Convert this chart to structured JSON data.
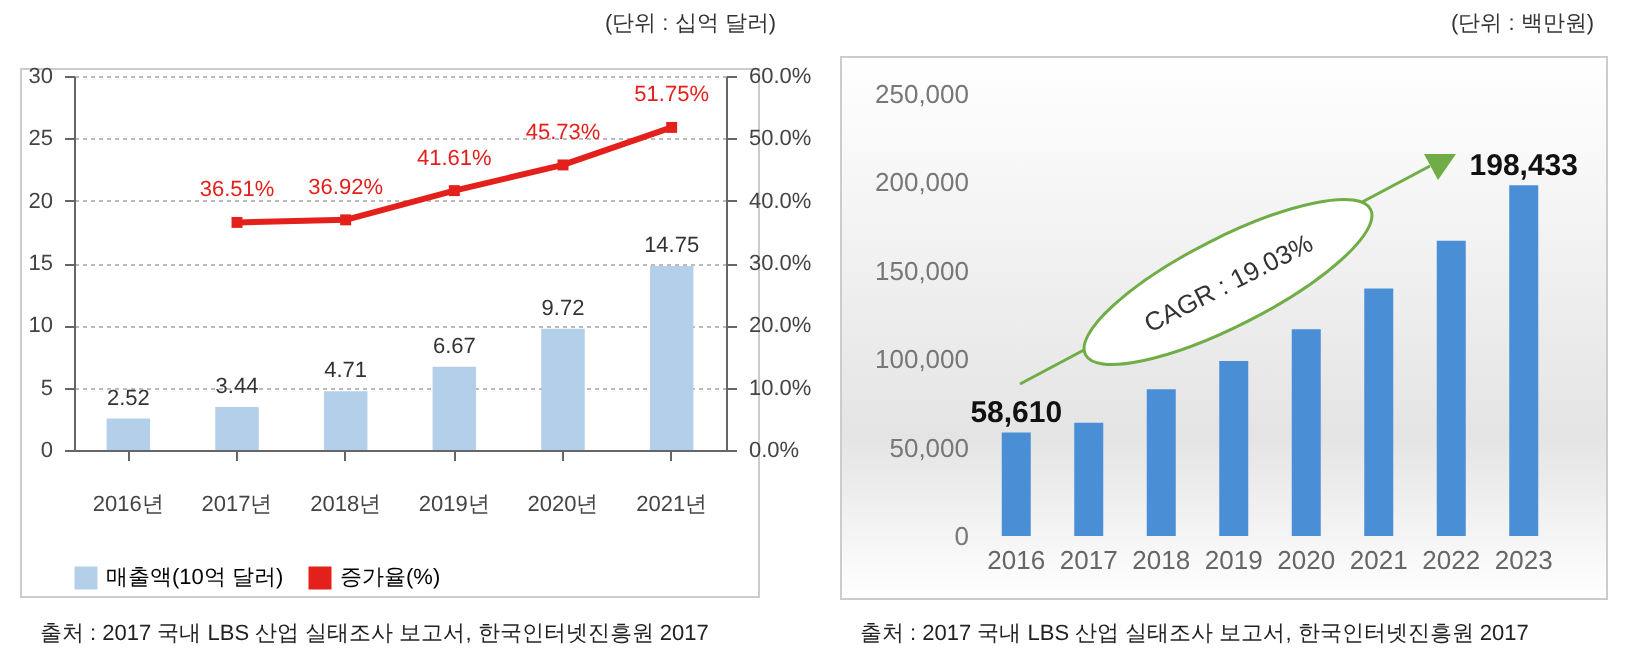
{
  "chart_data": [
    {
      "type": "bar",
      "categories": [
        "2016년",
        "2017년",
        "2018년",
        "2019년",
        "2020년",
        "2021년"
      ],
      "series": [
        {
          "name": "매출액(10억 달러)",
          "color": "#b4cfea",
          "values": [
            2.52,
            3.44,
            4.71,
            6.67,
            9.72,
            14.75
          ],
          "value_labels": [
            "2.52",
            "3.44",
            "4.71",
            "6.67",
            "9.72",
            "14.75"
          ]
        },
        {
          "name": "증가율(%)",
          "type": "line",
          "axis": "y2",
          "color": "#e3201b",
          "values": [
            null,
            36.51,
            36.92,
            41.61,
            45.73,
            51.75
          ],
          "value_labels": [
            null,
            "36.51%",
            "36.92%",
            "41.61%",
            "45.73%",
            "51.75%"
          ]
        }
      ],
      "ylim": [
        0,
        30
      ],
      "yticks": [
        0,
        5,
        10,
        15,
        20,
        25,
        30
      ],
      "y2lim": [
        0,
        60
      ],
      "y2ticks": [
        {
          "value": 0,
          "label": "0.0%"
        },
        {
          "value": 10,
          "label": "10.0%"
        },
        {
          "value": 20,
          "label": "20.0%"
        },
        {
          "value": 30,
          "label": "30.0%"
        },
        {
          "value": 40,
          "label": "40.0%"
        },
        {
          "value": 50,
          "label": "50.0%"
        },
        {
          "value": 60,
          "label": "60.0%"
        }
      ],
      "grid": "y",
      "legend": "bottom",
      "marker": "square",
      "annotations": [
        "(단위 : 십억 달러)",
        "출처 : 2017 국내 LBS 산업 실태조사 보고서, 한국인터넷진흥원 2017"
      ]
    },
    {
      "type": "bar",
      "categories": [
        "2016",
        "2017",
        "2018",
        "2019",
        "2020",
        "2021",
        "2022",
        "2023"
      ],
      "series": [
        {
          "color": "#4a8fd6",
          "values": [
            58610,
            64000,
            83000,
            99000,
            117000,
            140000,
            167000,
            198433
          ],
          "value_labels": [
            "58,610",
            null,
            null,
            null,
            null,
            null,
            null,
            "198,433"
          ]
        }
      ],
      "ylim": [
        0,
        250000
      ],
      "yticks": [
        {
          "value": 0,
          "label": "0"
        },
        {
          "value": 50000,
          "label": "50,000"
        },
        {
          "value": 100000,
          "label": "100,000"
        },
        {
          "value": 150000,
          "label": "150,000"
        },
        {
          "value": 200000,
          "label": "200,000"
        },
        {
          "value": 250000,
          "label": "250,000"
        }
      ],
      "grid": false,
      "legend": false,
      "annotations": [
        "(단위 : 백만원)",
        "출처 : 2017 국내 LBS 산업 실태조사 보고서, 한국인터넷진흥원 2017",
        "CAGR : 19.03%"
      ]
    }
  ]
}
